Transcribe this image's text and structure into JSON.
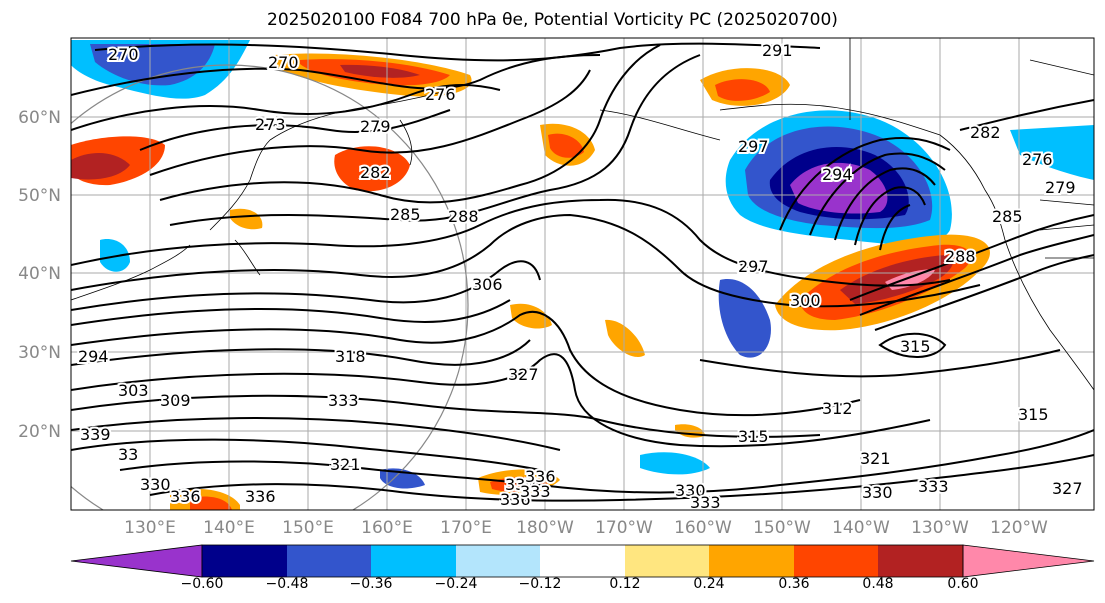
{
  "title": "2025020100 F084 700 hPa θe, Potential Vorticity PC (2025020700)",
  "map": {
    "lat_ticks": [
      "60°N",
      "50°N",
      "40°N",
      "30°N",
      "20°N"
    ],
    "lon_ticks": [
      "130°E",
      "140°E",
      "150°E",
      "160°E",
      "170°E",
      "180°W",
      "170°W",
      "160°W",
      "150°W",
      "140°W",
      "130°W",
      "120°W"
    ],
    "contour_labels": [
      "270",
      "270",
      "276",
      "273",
      "279",
      "282",
      "285",
      "288",
      "291",
      "297",
      "294",
      "282",
      "276",
      "279",
      "285",
      "288",
      "297",
      "300",
      "306",
      "318",
      "315",
      "294",
      "303",
      "309",
      "333",
      "327",
      "312",
      "315",
      "315",
      "321",
      "327",
      "330",
      "333",
      "336",
      "330",
      "336",
      "336",
      "321",
      "330",
      "333",
      "330",
      "333",
      "336",
      "339",
      "33"
    ]
  },
  "colorbar": {
    "ticks": [
      "−0.60",
      "−0.48",
      "−0.36",
      "−0.24",
      "−0.12",
      "0.12",
      "0.24",
      "0.36",
      "0.48",
      "0.60"
    ],
    "colors": [
      "#9933cc",
      "#00008b",
      "#3355cc",
      "#00bfff",
      "#b3e5fc",
      "#ffffff",
      "#ffe680",
      "#ffa500",
      "#ff4500",
      "#b22222",
      "#ff88aa"
    ]
  }
}
